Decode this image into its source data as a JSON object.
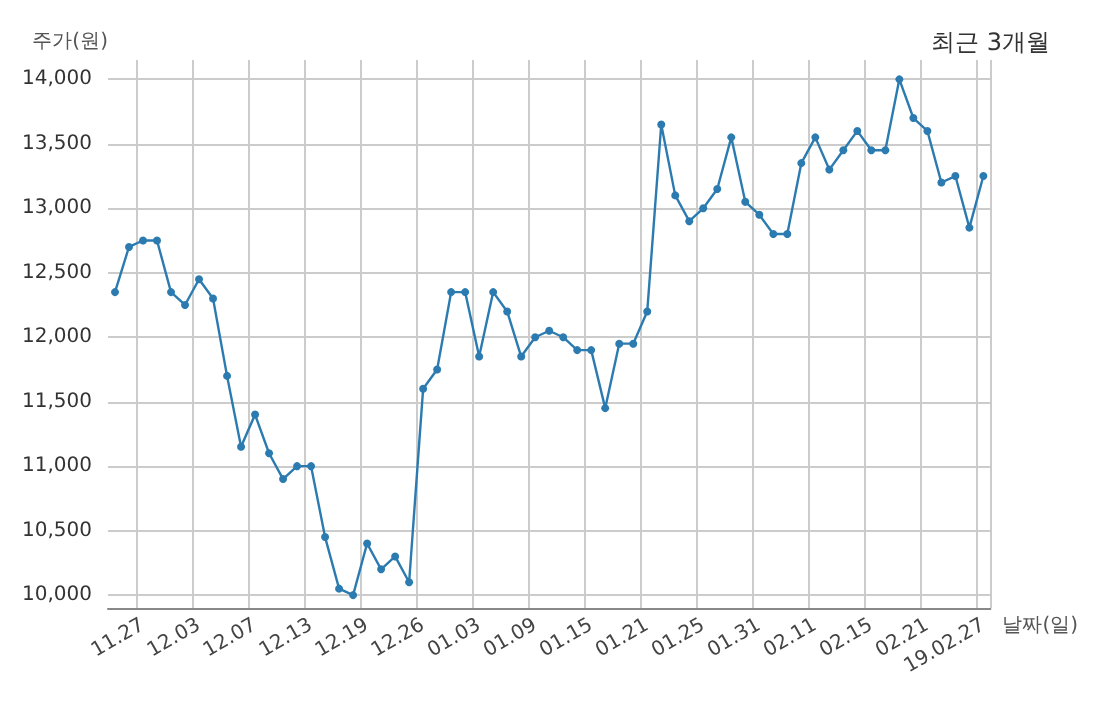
{
  "chart_data": {
    "type": "line",
    "title": "최근 3개월",
    "ylabel": "주가(원)",
    "xlabel": "날짜(일)",
    "categories": [
      null,
      null,
      "11.27",
      null,
      null,
      null,
      "12.03",
      null,
      null,
      null,
      "12.07",
      null,
      null,
      null,
      "12.13",
      null,
      null,
      null,
      "12.19",
      null,
      null,
      null,
      "12.26",
      null,
      null,
      null,
      "01.03",
      null,
      null,
      null,
      "01.09",
      null,
      null,
      null,
      "01.15",
      null,
      null,
      null,
      "01.21",
      null,
      null,
      null,
      "01.25",
      null,
      null,
      null,
      "01.31",
      null,
      null,
      null,
      "02.11",
      null,
      null,
      null,
      "02.15",
      null,
      null,
      null,
      "02.21",
      null,
      null,
      null,
      "19.02.27"
    ],
    "series": [
      {
        "color": "#2b7bb0",
        "values": [
          12350,
          12700,
          12750,
          12750,
          12350,
          12250,
          12450,
          12300,
          11700,
          11150,
          11400,
          11100,
          10900,
          11000,
          11000,
          10450,
          10050,
          10000,
          10400,
          10200,
          10300,
          10100,
          11600,
          11750,
          12350,
          12350,
          11850,
          12350,
          12200,
          11850,
          12000,
          12050,
          12000,
          11900,
          11900,
          11450,
          11950,
          11950,
          12200,
          13650,
          13100,
          12900,
          13000,
          13150,
          13550,
          13050,
          12950,
          12800,
          12800,
          13350,
          13550,
          13300,
          13450,
          13600,
          13450,
          13450,
          14000,
          13700,
          13600,
          13200,
          13250,
          12850,
          13250
        ]
      }
    ],
    "ylim": [
      9900,
      14150
    ],
    "yticks": [
      {
        "value": 10000,
        "label": "10,000"
      },
      {
        "value": 10500,
        "label": "10,500"
      },
      {
        "value": 11000,
        "label": "11,000"
      },
      {
        "value": 11500,
        "label": "11,500"
      },
      {
        "value": 12000,
        "label": "12,000"
      },
      {
        "value": 12500,
        "label": "12,500"
      },
      {
        "value": 13000,
        "label": "13,000"
      },
      {
        "value": 13500,
        "label": "13,500"
      },
      {
        "value": 14000,
        "label": "14,000"
      }
    ],
    "grid": true,
    "marker": "circle",
    "line_style": "solid"
  }
}
